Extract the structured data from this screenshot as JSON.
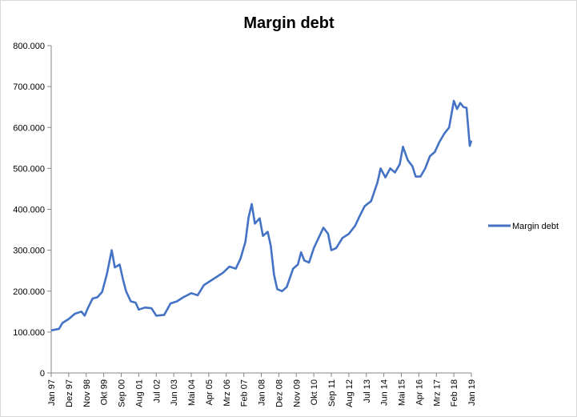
{
  "chart_data": {
    "type": "line",
    "title": "Margin debt",
    "xlabel": "",
    "ylabel": "",
    "ylim": [
      0,
      800000
    ],
    "y_ticks": [
      0,
      100000,
      200000,
      300000,
      400000,
      500000,
      600000,
      700000,
      800000
    ],
    "y_tick_labels": [
      "0",
      "100.000",
      "200.000",
      "300.000",
      "400.000",
      "500.000",
      "600.000",
      "700.000",
      "800.000"
    ],
    "x_ticks": [
      {
        "date": "1997-01",
        "label": "Jan 97"
      },
      {
        "date": "1997-12",
        "label": "Dez 97"
      },
      {
        "date": "1998-11",
        "label": "Nov 98"
      },
      {
        "date": "1999-10",
        "label": "Okt 99"
      },
      {
        "date": "2000-09",
        "label": "Sep 00"
      },
      {
        "date": "2001-08",
        "label": "Aug 01"
      },
      {
        "date": "2002-07",
        "label": "Jul 02"
      },
      {
        "date": "2003-06",
        "label": "Jun 03"
      },
      {
        "date": "2004-05",
        "label": "Mai 04"
      },
      {
        "date": "2005-04",
        "label": "Apr 05"
      },
      {
        "date": "2006-03",
        "label": "Mrz 06"
      },
      {
        "date": "2007-02",
        "label": "Feb 07"
      },
      {
        "date": "2008-01",
        "label": "Jan 08"
      },
      {
        "date": "2008-12",
        "label": "Dez 08"
      },
      {
        "date": "2009-11",
        "label": "Nov 09"
      },
      {
        "date": "2010-10",
        "label": "Okt 10"
      },
      {
        "date": "2011-09",
        "label": "Sep 11"
      },
      {
        "date": "2012-08",
        "label": "Aug 12"
      },
      {
        "date": "2013-07",
        "label": "Jul 13"
      },
      {
        "date": "2014-06",
        "label": "Jun 14"
      },
      {
        "date": "2015-05",
        "label": "Mai 15"
      },
      {
        "date": "2016-04",
        "label": "Apr 16"
      },
      {
        "date": "2017-03",
        "label": "Mrz 17"
      },
      {
        "date": "2018-02",
        "label": "Feb 18"
      },
      {
        "date": "2019-01",
        "label": "Jan 19"
      }
    ],
    "series": [
      {
        "name": "Margin debt",
        "color": "#4472c4",
        "points": [
          [
            "1997-01",
            104000
          ],
          [
            "1997-06",
            108000
          ],
          [
            "1997-08",
            122000
          ],
          [
            "1997-12",
            132000
          ],
          [
            "1998-04",
            145000
          ],
          [
            "1998-08",
            150000
          ],
          [
            "1998-10",
            140000
          ],
          [
            "1998-12",
            158000
          ],
          [
            "1999-03",
            182000
          ],
          [
            "1999-06",
            185000
          ],
          [
            "1999-09",
            198000
          ],
          [
            "1999-12",
            242000
          ],
          [
            "2000-03",
            300000
          ],
          [
            "2000-05",
            258000
          ],
          [
            "2000-08",
            265000
          ],
          [
            "2000-10",
            230000
          ],
          [
            "2000-12",
            200000
          ],
          [
            "2001-03",
            175000
          ],
          [
            "2001-06",
            172000
          ],
          [
            "2001-08",
            155000
          ],
          [
            "2001-12",
            160000
          ],
          [
            "2002-04",
            158000
          ],
          [
            "2002-07",
            140000
          ],
          [
            "2002-12",
            142000
          ],
          [
            "2003-04",
            170000
          ],
          [
            "2003-08",
            175000
          ],
          [
            "2003-12",
            185000
          ],
          [
            "2004-05",
            195000
          ],
          [
            "2004-09",
            190000
          ],
          [
            "2005-01",
            215000
          ],
          [
            "2005-05",
            225000
          ],
          [
            "2005-09",
            235000
          ],
          [
            "2006-01",
            245000
          ],
          [
            "2006-05",
            260000
          ],
          [
            "2006-09",
            255000
          ],
          [
            "2006-12",
            280000
          ],
          [
            "2007-03",
            320000
          ],
          [
            "2007-05",
            380000
          ],
          [
            "2007-07",
            413000
          ],
          [
            "2007-09",
            365000
          ],
          [
            "2007-12",
            378000
          ],
          [
            "2008-02",
            335000
          ],
          [
            "2008-05",
            345000
          ],
          [
            "2008-07",
            310000
          ],
          [
            "2008-09",
            240000
          ],
          [
            "2008-11",
            205000
          ],
          [
            "2009-02",
            200000
          ],
          [
            "2009-05",
            210000
          ],
          [
            "2009-09",
            255000
          ],
          [
            "2009-12",
            265000
          ],
          [
            "2010-02",
            295000
          ],
          [
            "2010-04",
            275000
          ],
          [
            "2010-07",
            270000
          ],
          [
            "2010-10",
            305000
          ],
          [
            "2011-01",
            330000
          ],
          [
            "2011-04",
            355000
          ],
          [
            "2011-07",
            340000
          ],
          [
            "2011-09",
            300000
          ],
          [
            "2011-12",
            305000
          ],
          [
            "2012-04",
            330000
          ],
          [
            "2012-08",
            340000
          ],
          [
            "2012-12",
            360000
          ],
          [
            "2013-03",
            385000
          ],
          [
            "2013-06",
            408000
          ],
          [
            "2013-10",
            420000
          ],
          [
            "2014-02",
            466000
          ],
          [
            "2014-04",
            500000
          ],
          [
            "2014-07",
            478000
          ],
          [
            "2014-10",
            500000
          ],
          [
            "2015-01",
            490000
          ],
          [
            "2015-04",
            510000
          ],
          [
            "2015-06",
            553000
          ],
          [
            "2015-09",
            520000
          ],
          [
            "2015-12",
            505000
          ],
          [
            "2016-02",
            480000
          ],
          [
            "2016-05",
            480000
          ],
          [
            "2016-08",
            500000
          ],
          [
            "2016-11",
            530000
          ],
          [
            "2017-02",
            540000
          ],
          [
            "2017-05",
            565000
          ],
          [
            "2017-08",
            585000
          ],
          [
            "2017-11",
            600000
          ],
          [
            "2018-02",
            665000
          ],
          [
            "2018-04",
            645000
          ],
          [
            "2018-06",
            660000
          ],
          [
            "2018-08",
            650000
          ],
          [
            "2018-10",
            648000
          ],
          [
            "2018-12",
            555000
          ],
          [
            "2019-01",
            568000
          ]
        ]
      }
    ],
    "legend": {
      "position": "right",
      "entries": [
        "Margin debt"
      ]
    },
    "grid": false
  }
}
